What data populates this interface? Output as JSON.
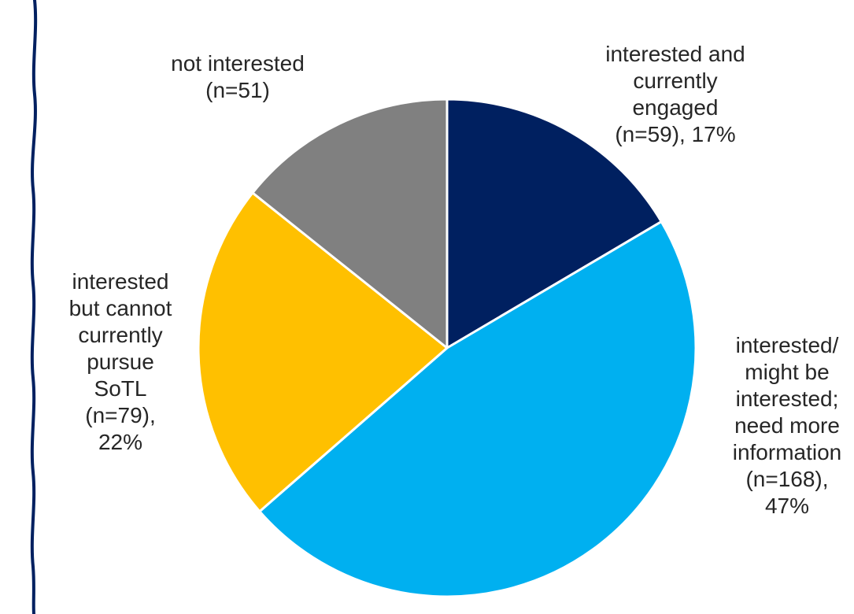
{
  "chart_data": {
    "type": "pie",
    "title": "",
    "slices": [
      {
        "category": "interested and currently engaged",
        "count": 59,
        "percent": 17,
        "color": "#002060",
        "label_lines": [
          "interested and",
          "currently",
          "engaged",
          "(n=59), 17%"
        ]
      },
      {
        "category": "interested/ might be interested; need more information",
        "count": 168,
        "percent": 47,
        "color": "#00B0F0",
        "label_lines": [
          "interested/",
          "might be",
          "interested;",
          "need more",
          "information",
          "(n=168),",
          "47%"
        ]
      },
      {
        "category": "interested but cannot currently pursue SoTL",
        "count": 79,
        "percent": 22,
        "color": "#FFC000",
        "label_lines": [
          "interested",
          "but cannot",
          "currently",
          "pursue",
          "SoTL",
          "(n=79),",
          "22%"
        ]
      },
      {
        "category": "not interested",
        "count": 51,
        "percent": 14,
        "color": "#808080",
        "label_lines": [
          "not interested",
          "(n=51)"
        ]
      }
    ]
  },
  "decoration": {
    "border_color": "#002060"
  }
}
